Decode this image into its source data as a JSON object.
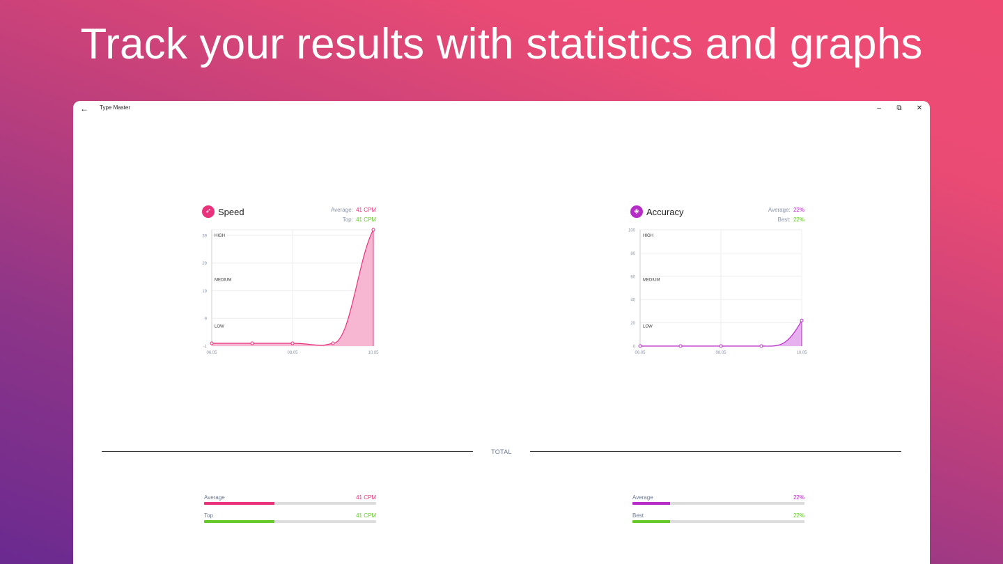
{
  "hero": {
    "title": "Track your results with statistics and graphs"
  },
  "window": {
    "title": "Type Master",
    "back_icon": "back-arrow-icon",
    "controls": {
      "minimize": "–",
      "restore": "⧉",
      "close": "✕"
    }
  },
  "colors": {
    "speed": "#e8327c",
    "speed_fill": "#f7b6d2",
    "accuracy": "#b62cc7",
    "accuracy_fill": "#e7b1ef",
    "green": "#66c92b",
    "muted": "#8a94a8"
  },
  "speed": {
    "title": "Speed",
    "icon": "rocket-icon",
    "average_label": "Average:",
    "average_value": "41 CPM",
    "top_label": "Top:",
    "top_value": "41 CPM"
  },
  "accuracy": {
    "title": "Accuracy",
    "icon": "target-icon",
    "average_label": "Average:",
    "average_value": "22%",
    "best_label": "Best:",
    "best_value": "22%"
  },
  "chart_data": [
    {
      "type": "area",
      "title": "Speed",
      "x": [
        "06.05",
        "07.05",
        "08.05",
        "09.05",
        "10.05"
      ],
      "x_tick_labels": [
        "06.05",
        "",
        "08.05",
        "",
        "10.05"
      ],
      "values": [
        0,
        0,
        0,
        0,
        41
      ],
      "ylim": [
        -1,
        41
      ],
      "y_ticks": [
        -1,
        9,
        19,
        29,
        39
      ],
      "bands": [
        "HIGH",
        "MEDIUM",
        "LOW"
      ],
      "grid": true,
      "legend": "none"
    },
    {
      "type": "area",
      "title": "Accuracy",
      "x": [
        "06.05",
        "07.05",
        "08.05",
        "09.05",
        "10.05"
      ],
      "x_tick_labels": [
        "06.05",
        "",
        "08.05",
        "",
        "10.05"
      ],
      "values": [
        0,
        0,
        0,
        0,
        22
      ],
      "ylim": [
        0,
        100
      ],
      "y_ticks": [
        0,
        20,
        40,
        60,
        80,
        100
      ],
      "bands": [
        "HIGH",
        "MEDIUM",
        "LOW"
      ],
      "grid": true,
      "legend": "none"
    }
  ],
  "total": {
    "label": "TOTAL",
    "speed": [
      {
        "label": "Average",
        "value": "41 CPM",
        "fraction": 0.41,
        "color": "#e8327c"
      },
      {
        "label": "Top",
        "value": "41 CPM",
        "fraction": 0.41,
        "color": "#66c92b"
      }
    ],
    "accuracy": [
      {
        "label": "Average",
        "value": "22%",
        "fraction": 0.22,
        "color": "#b62cc7"
      },
      {
        "label": "Best",
        "value": "22%",
        "fraction": 0.22,
        "color": "#66c92b"
      }
    ]
  }
}
